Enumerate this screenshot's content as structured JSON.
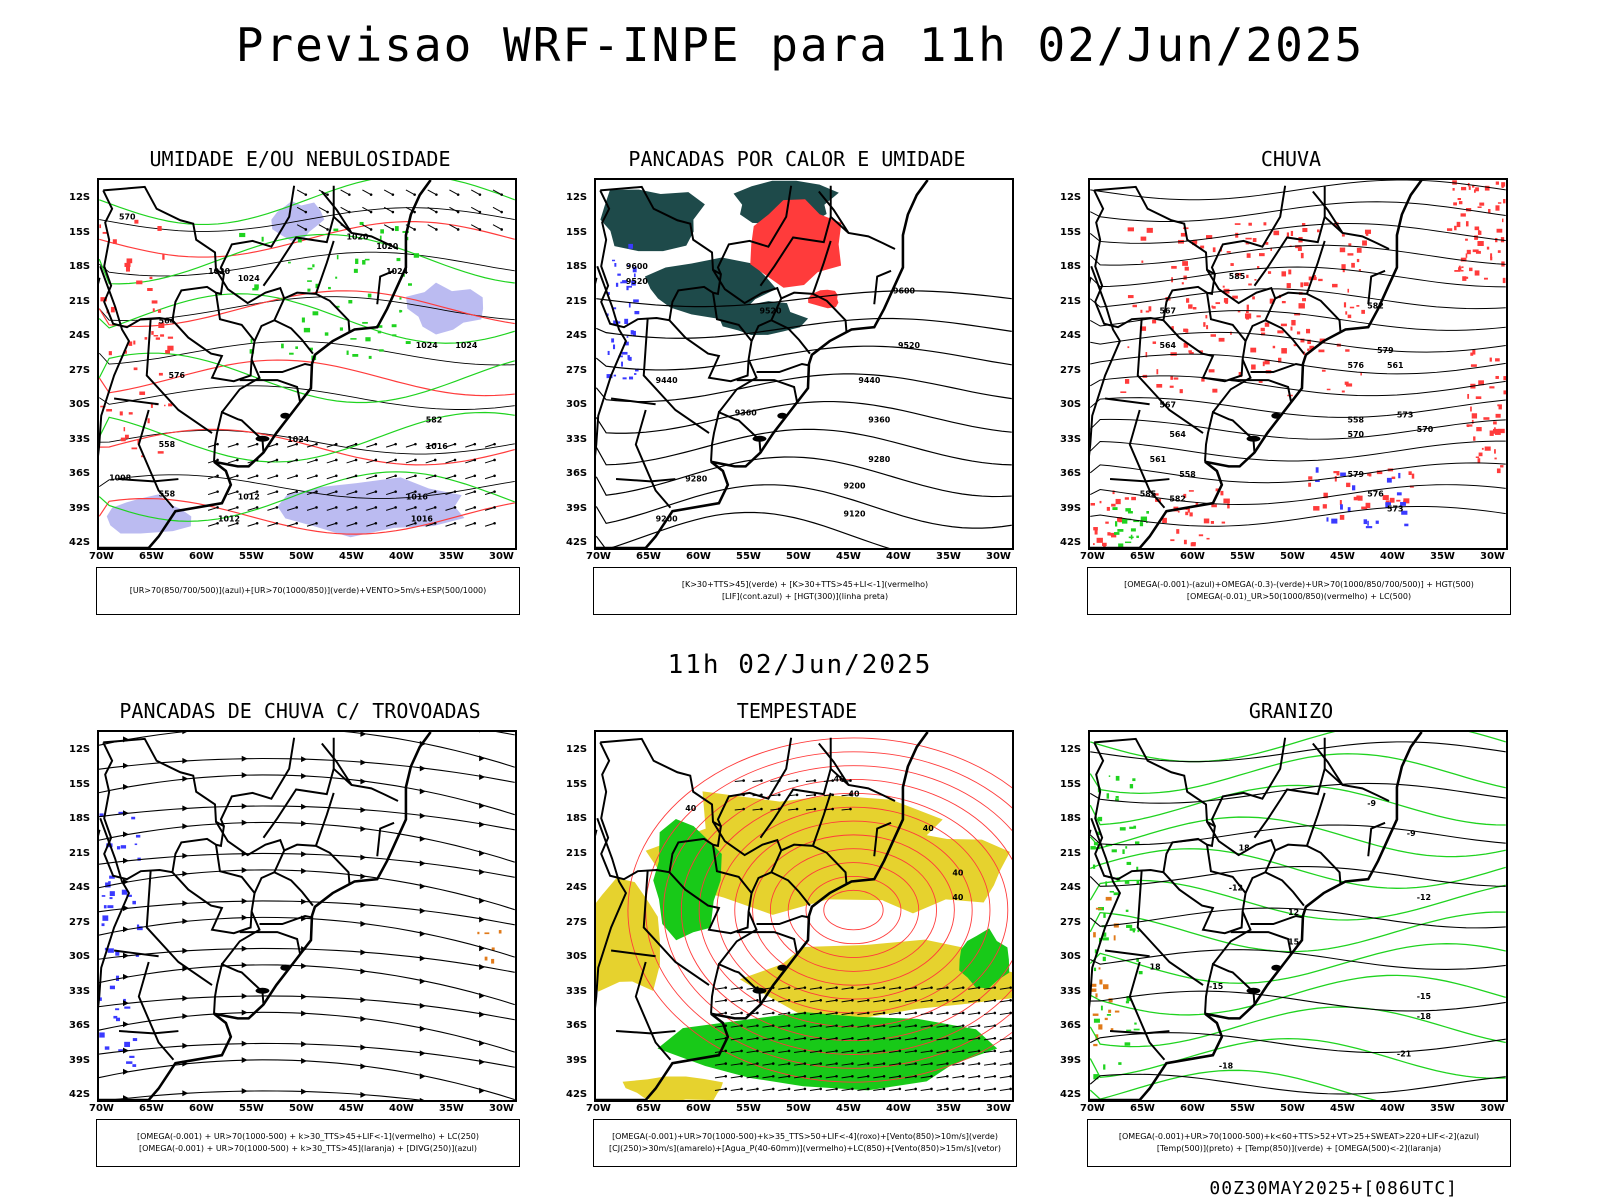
{
  "title": "Previsao WRF-INPE  para 11h 02/Jun/2025",
  "mid_title": "11h 02/Jun/2025",
  "footer": "00Z30MAY2025+[086UTC]",
  "axes": {
    "lat_labels": [
      "12S",
      "15S",
      "18S",
      "21S",
      "24S",
      "27S",
      "30S",
      "33S",
      "36S",
      "39S",
      "42S"
    ],
    "lon_labels": [
      "70W",
      "65W",
      "60W",
      "55W",
      "50W",
      "45W",
      "40W",
      "35W",
      "30W"
    ]
  },
  "colors": {
    "red": "#ff3b3b",
    "green": "#1fd31f",
    "blue": "#3a3aff",
    "lavender": "#b4b4f0",
    "darkteal": "#1e4a4a",
    "yellow": "#e6d22e",
    "orange": "#e07a1a"
  },
  "panels": [
    {
      "title": "UMIDADE E/OU NEBULOSIDADE",
      "legend": [
        "[UR>70(850/700/500)](azul)+[UR>70(1000/850)](verde)+VENTO>5m/s+ESP(500/1000)"
      ],
      "contour_labels": [
        "1020",
        "1020",
        "1020",
        "1024",
        "1024",
        "1024",
        "1024",
        "1024",
        "1016",
        "1012",
        "1012",
        "1016",
        "1016",
        "1008",
        "570",
        "564",
        "558",
        "582",
        "582",
        "558",
        "576"
      ]
    },
    {
      "title": "PANCADAS POR CALOR E UMIDADE",
      "legend": [
        "[K>30+TTS>45](verde) + [K>30+TTS>45+LI<-1](vermelho)",
        "[LIF](cont.azul) + [HGT(300)](linha preta)"
      ],
      "contour_labels": [
        "9600",
        "9520",
        "9520",
        "9440",
        "9360",
        "9280",
        "9200",
        "9120",
        "9600",
        "9520",
        "9440",
        "9360",
        "9280",
        "9200"
      ]
    },
    {
      "title": "CHUVA",
      "legend": [
        "[OMEGA(-0.001)-(azul)+OMEGA(-0.3)-(verde)+UR>70(1000/850/700/500)] + HGT(500)",
        "[OMEGA(-0.01)_UR>50(1000/850)(vermelho) + LC(500)"
      ],
      "contour_labels": [
        "585",
        "582",
        "579",
        "576",
        "573",
        "570",
        "567",
        "564",
        "561",
        "558",
        "585",
        "582",
        "579",
        "576",
        "573",
        "570",
        "567",
        "564",
        "561",
        "558"
      ]
    },
    {
      "title": "PANCADAS DE CHUVA C/ TROVOADAS",
      "legend": [
        "[OMEGA(-0.001) + UR>70(1000-500) + k>30_TTS>45+LIF<-1](vermelho) + LC(250)",
        "[OMEGA(-0.001) + UR>70(1000-500) + k>30_TTS>45](laranja) + [DIVG(250)](azul)"
      ],
      "contour_labels": []
    },
    {
      "title": "TEMPESTADE",
      "legend": [
        "[OMEGA(-0.001)+UR>70(1000-500)+k>35_TTS>50+LIF<-4](roxo)+[Vento(850)>10m/s](verde)",
        "[CJ(250)>30m/s](amarelo)+[Agua_P(40-60mm)](vermelho)+LC(850)+[Vento(850)>15m/s](vetor)"
      ],
      "contour_labels": [
        "40",
        "40",
        "40",
        "40",
        "40",
        "40"
      ]
    },
    {
      "title": "GRANIZO",
      "legend": [
        "[OMEGA(-0.001)+UR>70(1000-500)+k<60+TTS>52+VT>25+SWEAT>220+LIF<-2](azul)",
        "[Temp(500)](preto) + [Temp(850)](verde) + [OMEGA(500)<-2](laranja)"
      ],
      "contour_labels": [
        "-12",
        "-12",
        "-15",
        "-15",
        "-18",
        "-18",
        "-21",
        "-9",
        "-9",
        "12",
        "18",
        "15",
        "18"
      ]
    }
  ]
}
